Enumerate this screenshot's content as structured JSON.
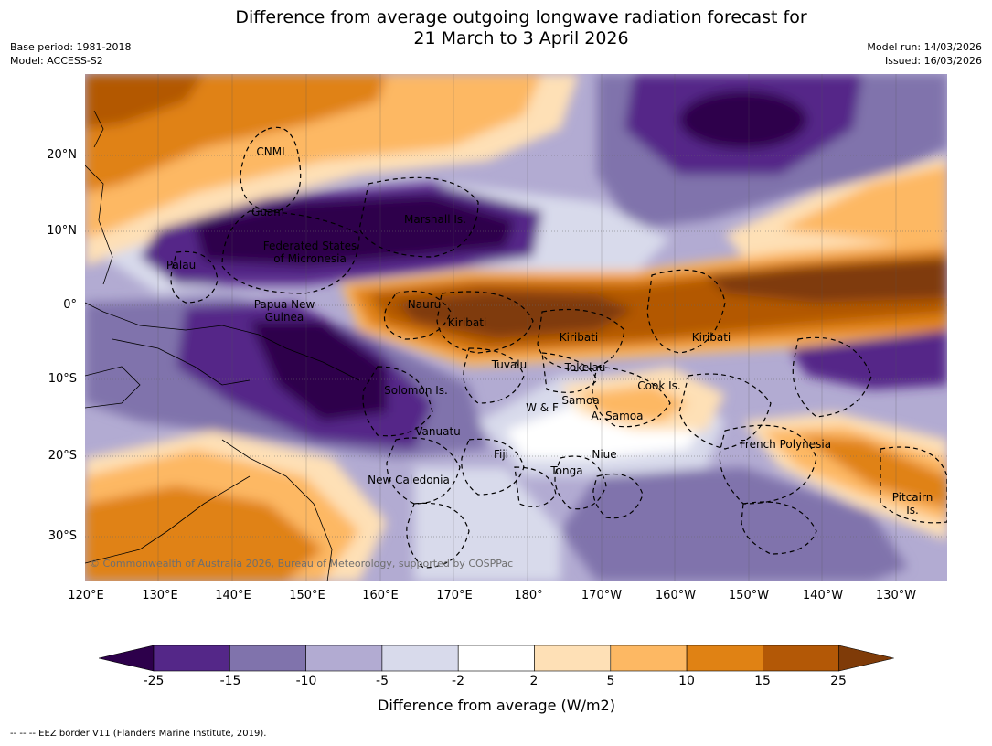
{
  "title": {
    "line1": "Difference from average outgoing longwave radiation forecast for",
    "line2": "21 March to 3 April 2026"
  },
  "meta": {
    "base_period": "Base period: 1981-2018",
    "model": "Model: ACCESS-S2",
    "model_run": "Model run: 14/03/2026",
    "issued": "Issued: 16/03/2026"
  },
  "axes": {
    "lat_labels": [
      "20°N",
      "10°N",
      "0°",
      "10°S",
      "20°S",
      "30°S"
    ],
    "lon_labels": [
      "120°E",
      "130°E",
      "140°E",
      "150°E",
      "160°E",
      "170°E",
      "180°",
      "170°W",
      "160°W",
      "150°W",
      "140°W",
      "130°W"
    ]
  },
  "places": {
    "cnmi": "CNMI",
    "guam": "Guam",
    "marshall": "Marshall Is.",
    "fsm_1": "Federated States",
    "fsm_2": "of Micronesia",
    "palau": "Palau",
    "png_1": "Papua New",
    "png_2": "Guinea",
    "nauru": "Nauru",
    "kiribati_w": "Kiribati",
    "kiribati_c": "Kiribati",
    "kiribati_e": "Kiribati",
    "tuvalu": "Tuvalu",
    "tokelau": "Tokelau",
    "cook": "Cook Is.",
    "solomon": "Solomon Is.",
    "wf": "W & F",
    "samoa": "Samoa",
    "asamoa": "A. Samoa",
    "vanuatu": "Vanuatu",
    "fiji": "Fiji",
    "niue": "Niue",
    "tonga": "Tonga",
    "french_polynesia": "French Polynesia",
    "new_caledonia": "New Caledonia",
    "pitcairn_1": "Pitcairn",
    "pitcairn_2": "Is."
  },
  "copyright": "© Commonwealth of Australia 2026, Bureau of Meteorology, supported by COSPPac",
  "colorbar": {
    "ticks": [
      "-25",
      "-15",
      "-10",
      "-5",
      "-2",
      "2",
      "5",
      "10",
      "15",
      "25"
    ],
    "colors": [
      "#2d004b",
      "#542788",
      "#8073ac",
      "#b2abd2",
      "#d8daeb",
      "#ffffff",
      "#fee0b6",
      "#fdb863",
      "#e08214",
      "#b35806",
      "#7f3b08"
    ],
    "label": "Difference from average (W/m2)"
  },
  "footer": "--  --  -- EEZ border V11 (Flanders Marine Institute, 2019)."
}
